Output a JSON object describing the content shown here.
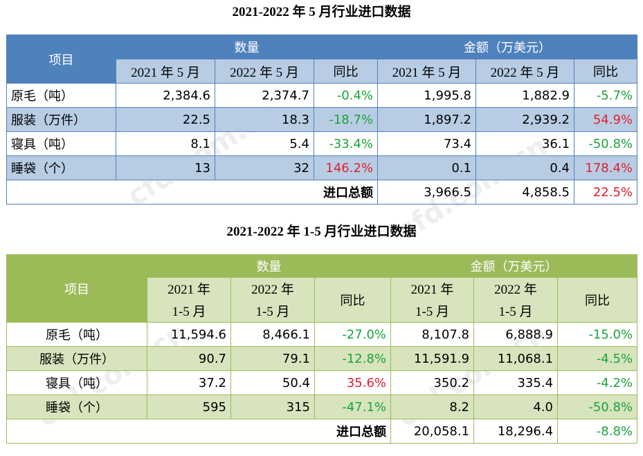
{
  "table1": {
    "title": "2021-2022 年 5 月行业进口数据",
    "header": {
      "item": "项目",
      "quantity": "数量",
      "amount": "金额（万美元）",
      "sub": [
        "2021 年 5 月",
        "2022 年 5 月",
        "同比",
        "2021 年 5 月",
        "2022 年 5 月",
        "同比"
      ]
    },
    "rows": [
      {
        "name": "原毛（吨）",
        "q2021": "2,384.6",
        "q2022": "2,374.7",
        "qyoy": "-0.4%",
        "a2021": "1,995.8",
        "a2022": "1,882.9",
        "ayoy": "-5.7%"
      },
      {
        "name": "服装（万件）",
        "q2021": "22.5",
        "q2022": "18.3",
        "qyoy": "-18.7%",
        "a2021": "1,897.2",
        "a2022": "2,939.2",
        "ayoy": "54.9%"
      },
      {
        "name": "寝具（吨）",
        "q2021": "8.1",
        "q2022": "5.4",
        "qyoy": "-33.4%",
        "a2021": "73.4",
        "a2022": "36.1",
        "ayoy": "-50.8%"
      },
      {
        "name": "睡袋（个）",
        "q2021": "13",
        "q2022": "32",
        "qyoy": "146.2%",
        "a2021": "0.1",
        "a2022": "0.4",
        "ayoy": "178.4%"
      }
    ],
    "total": {
      "label": "进口总额",
      "a2021": "3,966.5",
      "a2022": "4,858.5",
      "ayoy": "22.5%"
    }
  },
  "table2": {
    "title": "2021-2022 年 1-5 月行业进口数据",
    "header": {
      "item": "项目",
      "quantity": "数量",
      "amount": "金额（万美元）",
      "year2021": "2021 年",
      "year2022": "2022 年",
      "months": "1-5 月",
      "yoy": "同比"
    },
    "rows": [
      {
        "name": "原毛（吨）",
        "q2021": "11,594.6",
        "q2022": "8,466.1",
        "qyoy": "-27.0%",
        "a2021": "8,107.8",
        "a2022": "6,888.9",
        "ayoy": "-15.0%"
      },
      {
        "name": "服装（万件）",
        "q2021": "90.7",
        "q2022": "79.1",
        "qyoy": "-12.8%",
        "a2021": "11,591.9",
        "a2022": "11,068.1",
        "ayoy": "-4.5%"
      },
      {
        "name": "寝具（吨）",
        "q2021": "37.2",
        "q2022": "50.4",
        "qyoy": "35.6%",
        "a2021": "350.2",
        "a2022": "335.4",
        "ayoy": "-4.2%"
      },
      {
        "name": "睡袋（个）",
        "q2021": "595",
        "q2022": "315",
        "qyoy": "-47.1%",
        "a2021": "8.2",
        "a2022": "4.0",
        "ayoy": "-50.8%"
      }
    ],
    "total": {
      "label": "进口总额",
      "a2021": "20,058.1",
      "a2022": "18,296.4",
      "ayoy": "-8.8%"
    }
  },
  "watermark": {
    "text": "cfd.com.cn"
  },
  "colors": {
    "blue_header": "#4f81bd",
    "blue_band": "#b8cce4",
    "green_header": "#9bbb59",
    "green_band": "#d7e4bd",
    "positive": "#e0202e",
    "negative": "#1aa33b"
  }
}
